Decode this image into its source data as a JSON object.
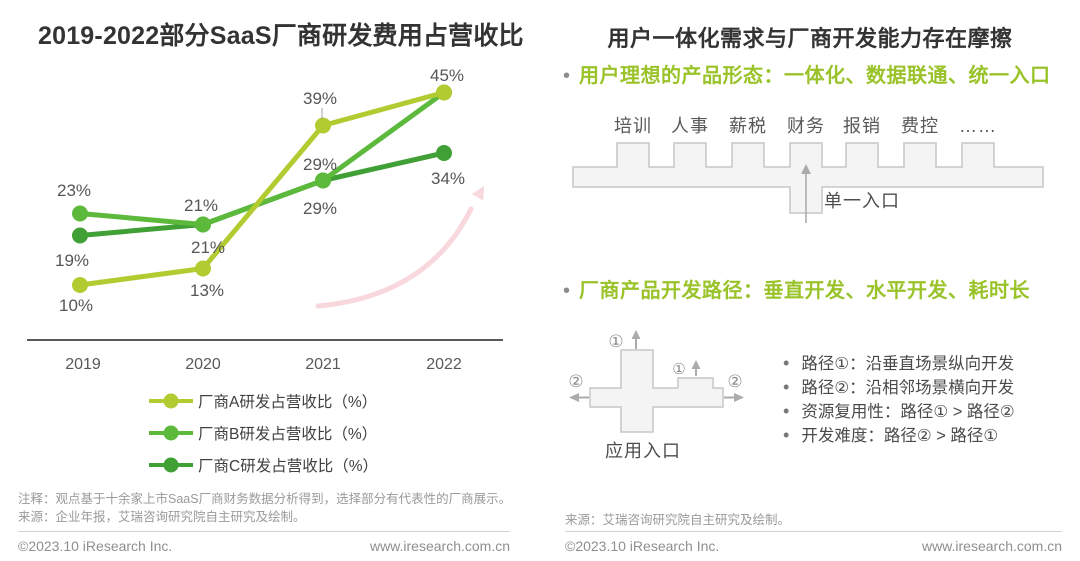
{
  "left_panel": {
    "title": "2019-2022部分SaaS厂商研发费用占营收比",
    "note1": "注释：观点基于十余家上市SaaS厂商财务数据分析得到，选择部分有代表性的厂商展示。",
    "note2": "来源：企业年报，艾瑞咨询研究院自主研究及绘制。",
    "copyright": "©2023.10 iResearch Inc.",
    "website": "www.iresearch.com.cn"
  },
  "chart_data": {
    "type": "line",
    "title": "2019-2022部分SaaS厂商研发费用占营收比",
    "categories": [
      "2019",
      "2020",
      "2021",
      "2022"
    ],
    "series": [
      {
        "name": "厂商A研发占营收比（%）",
        "values": [
          10,
          13,
          39,
          45
        ],
        "labels": [
          "10%",
          "13%",
          "39%",
          "45%"
        ],
        "color": "#b2cb31"
      },
      {
        "name": "厂商B研发占营收比（%）",
        "values": [
          23,
          21,
          29,
          45
        ],
        "labels": [
          "23%",
          "21%",
          "29%",
          "45%"
        ],
        "color": "#5cb93c"
      },
      {
        "name": "厂商C研发占营收比（%）",
        "values": [
          19,
          21,
          29,
          34
        ],
        "labels": [
          "19%",
          "21%",
          "29%",
          "34%"
        ],
        "color": "#41a035"
      }
    ],
    "ylim": [
      0,
      50
    ],
    "grid": false,
    "legend_position": "bottom",
    "annotations": [
      "pink exponential growth arrow behind lines"
    ]
  },
  "right_panel": {
    "title": "用户一体化需求与厂商开发能力存在摩擦",
    "bullet1": "用户理想的产品形态：一体化、数据联通、统一入口",
    "modules": [
      "培训",
      "人事",
      "薪税",
      "财务",
      "报销",
      "费控",
      "……"
    ],
    "single_entry_label": "单一入口",
    "bullet2": "厂商产品开发路径：垂直开发、水平开发、耗时长",
    "circle1": "①",
    "circle2": "②",
    "app_entry_label": "应用入口",
    "path_notes": [
      "路径①：沿垂直场景纵向开发",
      "路径②：沿相邻场景横向开发",
      "资源复用性：路径① > 路径②",
      "开发难度：路径② > 路径①"
    ],
    "source": "来源：艾瑞咨询研究院自主研究及绘制。",
    "copyright": "©2023.10 iResearch Inc.",
    "website": "www.iresearch.com.cn"
  },
  "colors": {
    "accent_green": "#9ac32a",
    "series_a": "#b2cb31",
    "series_b": "#5cb93c",
    "series_c": "#41a035",
    "growth_arrow_pink": "#f8d8dc",
    "diagram_fill": "#f4f4f4",
    "diagram_stroke": "#c6c6c6",
    "axis_color": "#595959"
  }
}
